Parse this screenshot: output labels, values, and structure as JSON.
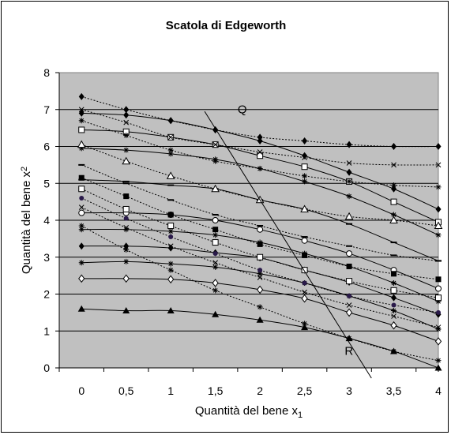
{
  "chart_data": {
    "type": "line",
    "title": "Scatola di Edgeworth",
    "xlabel": "Quantità del bene x",
    "xlabel_subscript": "1",
    "ylabel": "Quantità del bene x",
    "ylabel_subscript": "2",
    "xlim": [
      -0.25,
      4.0
    ],
    "ylim": [
      0,
      8
    ],
    "x_ticks": [
      0,
      0.5,
      1,
      1.5,
      2,
      2.5,
      3,
      3.5,
      4
    ],
    "x_tick_labels": [
      "0",
      "0,5",
      "1",
      "1,5",
      "2",
      "2,5",
      "3",
      "3,5",
      "4"
    ],
    "y_ticks": [
      0,
      1,
      2,
      3,
      4,
      5,
      6,
      7,
      8
    ],
    "y_tick_labels": [
      "0",
      "1",
      "2",
      "3",
      "4",
      "5",
      "6",
      "7",
      "8"
    ],
    "grid": "horizontal",
    "plot_background": "#c0c0c0",
    "annotations": [
      {
        "text": "Q",
        "x": 1.75,
        "y": 6.9
      },
      {
        "text": "R",
        "x": 2.95,
        "y": 0.35
      }
    ],
    "contract_curve": {
      "name": "QR",
      "x": [
        1.38,
        3.25
      ],
      "y": [
        6.95,
        -0.3
      ]
    },
    "x": [
      0,
      0.5,
      1,
      1.5,
      2,
      2.5,
      3,
      3.5,
      4
    ],
    "series": [
      {
        "style": "solid",
        "marker": "triangle-filled",
        "values": [
          1.6,
          1.55,
          1.55,
          1.45,
          1.3,
          1.1,
          0.8,
          0.45,
          0.0
        ]
      },
      {
        "style": "solid",
        "marker": "diamond-open",
        "values": [
          2.42,
          2.42,
          2.4,
          2.3,
          2.12,
          1.88,
          1.5,
          1.15,
          0.72
        ]
      },
      {
        "style": "solid",
        "marker": "star",
        "values": [
          2.85,
          2.88,
          2.82,
          2.73,
          2.55,
          2.3,
          1.95,
          1.55,
          1.05
        ]
      },
      {
        "style": "solid",
        "marker": "diamond-filled",
        "values": [
          3.3,
          3.3,
          3.25,
          3.12,
          2.98,
          2.65,
          2.32,
          1.9,
          1.45
        ]
      },
      {
        "style": "solid",
        "marker": "star",
        "values": [
          3.75,
          3.75,
          3.7,
          3.6,
          3.4,
          3.1,
          2.75,
          2.3,
          1.8
        ]
      },
      {
        "style": "solid",
        "marker": "circle-open",
        "values": [
          4.2,
          4.2,
          4.15,
          4.0,
          3.75,
          3.45,
          3.1,
          2.65,
          2.15
        ]
      },
      {
        "style": "solid",
        "marker": "dash",
        "values": [
          5.1,
          5.05,
          4.95,
          4.85,
          4.55,
          4.3,
          3.9,
          3.4,
          2.9
        ]
      },
      {
        "style": "solid",
        "marker": "star",
        "values": [
          5.95,
          5.9,
          5.8,
          5.65,
          5.4,
          5.05,
          4.65,
          4.15,
          3.6
        ]
      },
      {
        "style": "solid",
        "marker": "square-open",
        "values": [
          6.45,
          6.4,
          6.25,
          6.05,
          5.75,
          5.45,
          5.05,
          4.5,
          3.95
        ]
      },
      {
        "style": "solid",
        "marker": "diamond-filled",
        "values": [
          6.9,
          6.85,
          6.7,
          6.45,
          6.15,
          5.75,
          5.3,
          4.85,
          4.3
        ]
      },
      {
        "style": "dotted",
        "marker": "diamond-filled",
        "values": [
          7.35,
          7.0,
          6.7,
          6.45,
          6.25,
          6.15,
          6.05,
          6.0,
          6.0
        ]
      },
      {
        "style": "dotted",
        "marker": "x",
        "values": [
          7.0,
          6.65,
          6.25,
          6.05,
          5.85,
          5.7,
          5.55,
          5.5,
          5.5
        ]
      },
      {
        "style": "dotted",
        "marker": "star",
        "values": [
          6.7,
          6.3,
          5.9,
          5.6,
          5.4,
          5.2,
          5.05,
          4.95,
          4.9
        ]
      },
      {
        "style": "dotted",
        "marker": "triangle-open",
        "values": [
          6.05,
          5.6,
          5.2,
          4.85,
          4.55,
          4.3,
          4.1,
          4.0,
          3.85
        ]
      },
      {
        "style": "dotted",
        "marker": "dash",
        "values": [
          5.5,
          5.0,
          4.55,
          4.15,
          3.85,
          3.55,
          3.3,
          3.05,
          2.9
        ]
      },
      {
        "style": "dotted",
        "marker": "square-filled",
        "values": [
          5.15,
          4.65,
          4.15,
          3.75,
          3.35,
          3.05,
          2.75,
          2.55,
          2.4
        ]
      },
      {
        "style": "dotted",
        "marker": "square-open",
        "values": [
          4.85,
          4.3,
          3.85,
          3.4,
          3.0,
          2.65,
          2.35,
          2.1,
          1.9
        ]
      },
      {
        "style": "dotted",
        "marker": "circle-filled",
        "values": [
          4.6,
          4.05,
          3.55,
          3.1,
          2.65,
          2.3,
          1.95,
          1.7,
          1.5
        ]
      },
      {
        "style": "dotted",
        "marker": "x",
        "values": [
          4.35,
          3.8,
          3.3,
          2.85,
          2.45,
          2.05,
          1.7,
          1.4,
          1.1
        ]
      },
      {
        "style": "dotted",
        "marker": "star",
        "values": [
          3.85,
          3.2,
          2.65,
          2.1,
          1.65,
          1.2,
          0.8,
          0.45,
          0.2
        ]
      }
    ]
  }
}
